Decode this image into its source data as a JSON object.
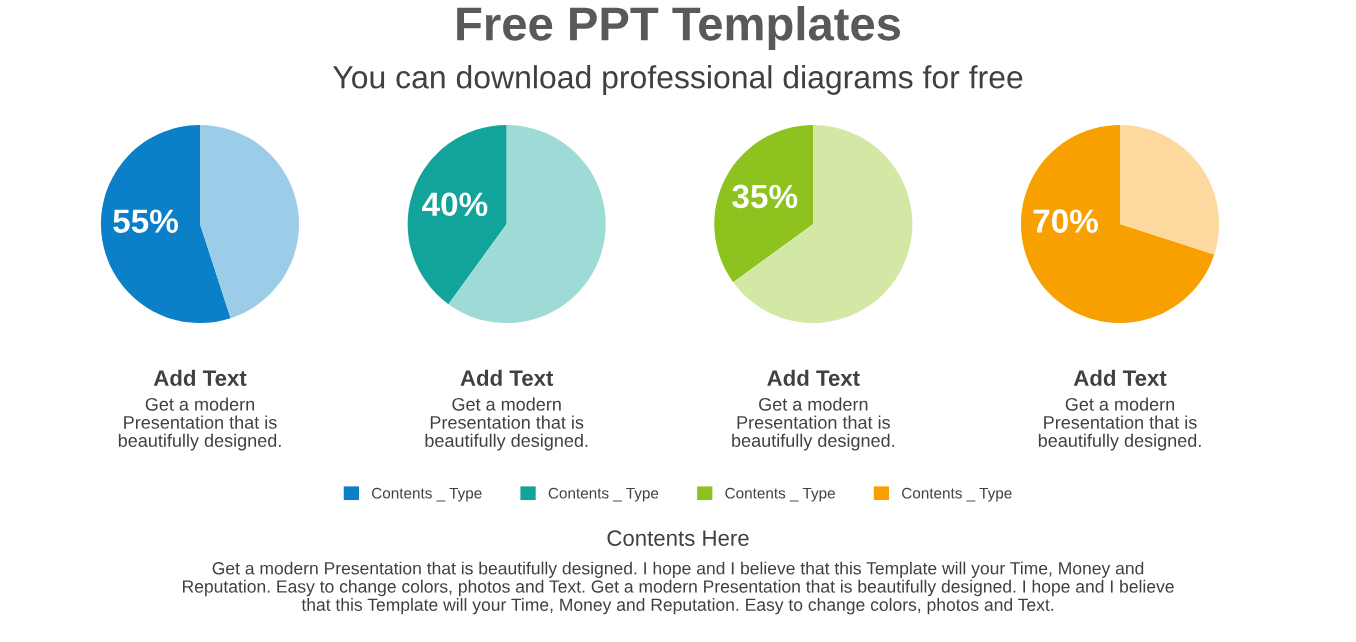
{
  "chart_data": [
    {
      "type": "other",
      "title": "Free PPT Templates",
      "subtitle": "You can download professional diagrams for free",
      "annotations": [
        "Contents Here",
        "Get a modern Presentation that is beautifully designed. I hope and I believe that this Template will your Time, Money and\nReputation. Easy to change colors, photos and Text. Get a modern Presentation that is beautifully designed. I hope and I believe\nthat this Template will your Time, Money and Reputation. Easy to change colors, photos and Text."
      ]
    },
    {
      "type": "pie",
      "categories": [
        "Contents _ Type",
        null
      ],
      "values": [
        55,
        45
      ],
      "colors": [
        "#0b7fc7",
        "#9ccde8"
      ],
      "value_labels": [
        "55%",
        null
      ],
      "xlabel": "Add Text",
      "annotations": [
        "Get a modern\nPresentation that is\nbeautifully designed."
      ],
      "legend": "bottom"
    },
    {
      "type": "pie",
      "categories": [
        "Contents _ Type",
        null
      ],
      "values": [
        40,
        60
      ],
      "colors": [
        "#12a39a",
        "#9edbd6"
      ],
      "value_labels": [
        "40%",
        null
      ],
      "xlabel": "Add Text",
      "annotations": [
        "Get a modern\nPresentation that is\nbeautifully designed."
      ],
      "legend": "bottom"
    },
    {
      "type": "pie",
      "categories": [
        "Contents _ Type",
        null
      ],
      "values": [
        35,
        65
      ],
      "colors": [
        "#8dc21f",
        "#d3e8a4"
      ],
      "value_labels": [
        "35%",
        null
      ],
      "xlabel": "Add Text",
      "annotations": [
        "Get a modern\nPresentation that is\nbeautifully designed."
      ],
      "legend": "bottom"
    },
    {
      "type": "pie",
      "categories": [
        "Contents _ Type",
        null
      ],
      "values": [
        70,
        30
      ],
      "colors": [
        "#f7a000",
        "#fdd9a0"
      ],
      "value_labels": [
        "70%",
        null
      ],
      "xlabel": "Add Text",
      "annotations": [
        "Get a modern\nPresentation that is\nbeautifully designed."
      ],
      "legend": "bottom"
    }
  ]
}
